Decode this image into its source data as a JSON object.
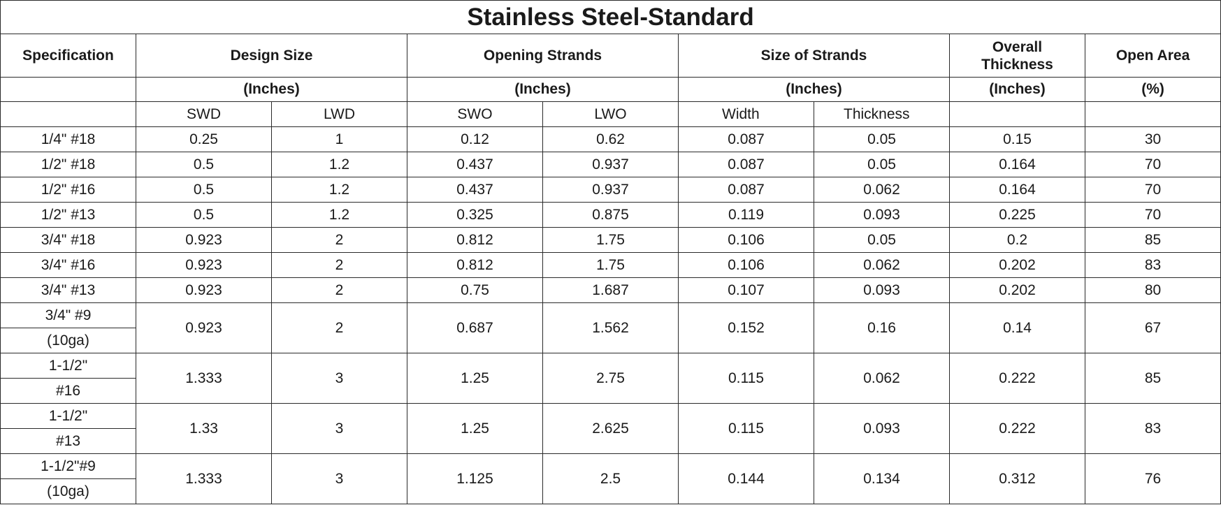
{
  "title": "Stainless Steel-Standard",
  "headers": {
    "specification": "Specification",
    "design_size": "Design Size",
    "opening_strands": "Opening Strands",
    "size_of_strands": "Size of Strands",
    "overall_thickness_1": "Overall",
    "overall_thickness_2": "Thickness",
    "open_area": "Open Area"
  },
  "units": {
    "design_size": "(Inches)",
    "opening_strands": "(Inches)",
    "size_of_strands": "(Inches)",
    "overall_thickness": "(Inches)",
    "open_area": "(%)"
  },
  "subheaders": {
    "swd": "SWD",
    "lwd": "LWD",
    "swo": "SWO",
    "lwo": "LWO",
    "width": "Width",
    "thickness": "Thickness"
  },
  "rows": [
    {
      "spec": "1/4\" #18",
      "swd": "0.25",
      "lwd": "1",
      "swo": "0.12",
      "lwo": "0.62",
      "width": "0.087",
      "thickness": "0.05",
      "overall": "0.15",
      "open": "30"
    },
    {
      "spec": "1/2\" #18",
      "swd": "0.5",
      "lwd": "1.2",
      "swo": "0.437",
      "lwo": "0.937",
      "width": "0.087",
      "thickness": "0.05",
      "overall": "0.164",
      "open": "70"
    },
    {
      "spec": "1/2\" #16",
      "swd": "0.5",
      "lwd": "1.2",
      "swo": "0.437",
      "lwo": "0.937",
      "width": "0.087",
      "thickness": "0.062",
      "overall": "0.164",
      "open": "70"
    },
    {
      "spec": "1/2\" #13",
      "swd": "0.5",
      "lwd": "1.2",
      "swo": "0.325",
      "lwo": "0.875",
      "width": "0.119",
      "thickness": "0.093",
      "overall": "0.225",
      "open": "70"
    },
    {
      "spec": "3/4\" #18",
      "swd": "0.923",
      "lwd": "2",
      "swo": "0.812",
      "lwo": "1.75",
      "width": "0.106",
      "thickness": "0.05",
      "overall": "0.2",
      "open": "85"
    },
    {
      "spec": "3/4\" #16",
      "swd": "0.923",
      "lwd": "2",
      "swo": "0.812",
      "lwo": "1.75",
      "width": "0.106",
      "thickness": "0.062",
      "overall": "0.202",
      "open": "83"
    },
    {
      "spec": "3/4\" #13",
      "swd": "0.923",
      "lwd": "2",
      "swo": "0.75",
      "lwo": "1.687",
      "width": "0.107",
      "thickness": "0.093",
      "overall": "0.202",
      "open": "80"
    }
  ],
  "split_rows": [
    {
      "spec_a": "3/4\" #9",
      "spec_b": "(10ga)",
      "swd": "0.923",
      "lwd": "2",
      "swo": "0.687",
      "lwo": "1.562",
      "width": "0.152",
      "thickness": "0.16",
      "overall": "0.14",
      "open": "67"
    },
    {
      "spec_a": "1-1/2\"",
      "spec_b": "#16",
      "swd": "1.333",
      "lwd": "3",
      "swo": "1.25",
      "lwo": "2.75",
      "width": "0.115",
      "thickness": "0.062",
      "overall": "0.222",
      "open": "85"
    },
    {
      "spec_a": "1-1/2\"",
      "spec_b": "#13",
      "swd": "1.33",
      "lwd": "3",
      "swo": "1.25",
      "lwo": "2.625",
      "width": "0.115",
      "thickness": "0.093",
      "overall": "0.222",
      "open": "83"
    },
    {
      "spec_a": "1-1/2\"#9",
      "spec_b": "(10ga)",
      "swd": "1.333",
      "lwd": "3",
      "swo": "1.125",
      "lwo": "2.5",
      "width": "0.144",
      "thickness": "0.134",
      "overall": "0.312",
      "open": "76"
    }
  ]
}
